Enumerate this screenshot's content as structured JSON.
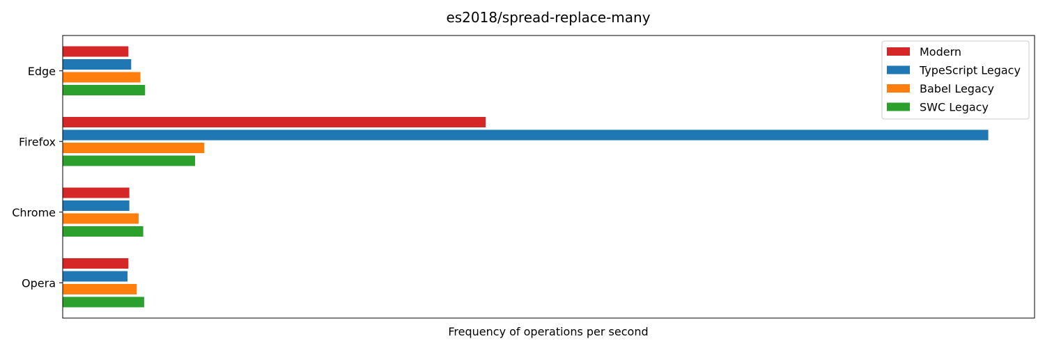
{
  "chart_data": {
    "type": "bar",
    "orientation": "horizontal",
    "title": "es2018/spread-replace-many",
    "xlabel": "Frequency of operations per second",
    "ylabel": "",
    "categories": [
      "Edge",
      "Firefox",
      "Chrome",
      "Opera"
    ],
    "xlim": [
      0,
      105
    ],
    "x_ticks_visible": false,
    "grid": false,
    "legend_position": "top-right",
    "series": [
      {
        "name": "Modern",
        "color": "#d62728",
        "values": [
          7.1,
          45.7,
          7.2,
          7.1
        ]
      },
      {
        "name": "TypeScript Legacy",
        "color": "#1f77b4",
        "values": [
          7.4,
          100,
          7.2,
          7.0
        ]
      },
      {
        "name": "Babel Legacy",
        "color": "#ff7f0e",
        "values": [
          8.4,
          15.3,
          8.2,
          8.0
        ]
      },
      {
        "name": "SWC Legacy",
        "color": "#2ca02c",
        "values": [
          8.9,
          14.3,
          8.7,
          8.8
        ]
      }
    ]
  }
}
